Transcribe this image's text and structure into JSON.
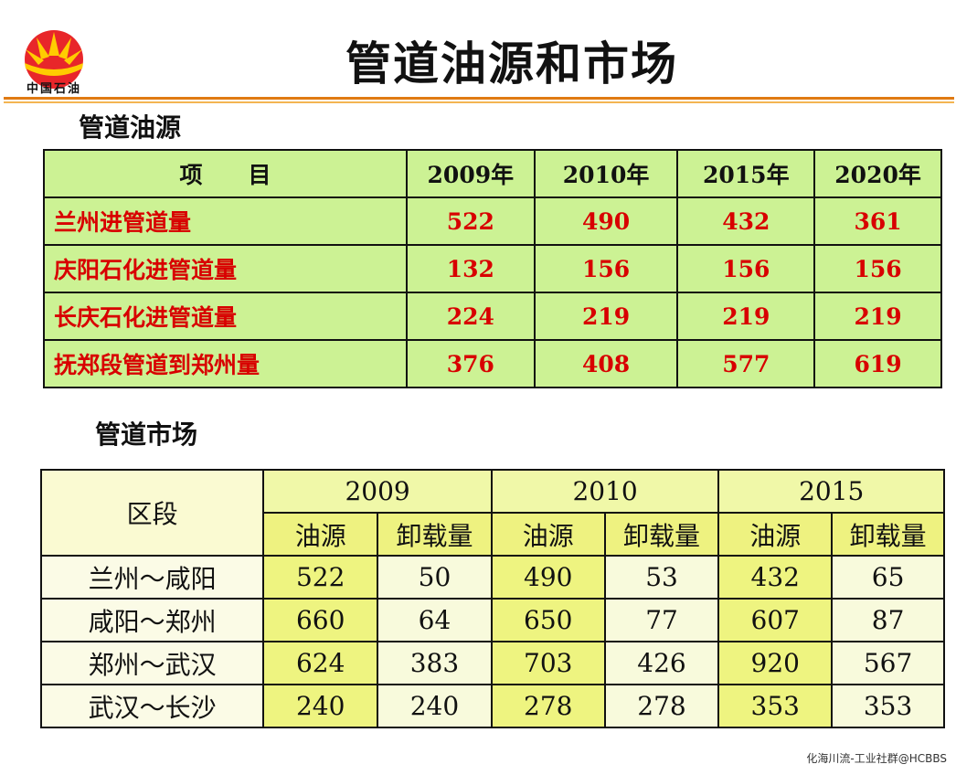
{
  "logo": {
    "text": "中国石油"
  },
  "title": "管道油源和市场",
  "section1": {
    "heading": "管道油源",
    "header": [
      "项　　目",
      "2009年",
      "2010年",
      "2015年",
      "2020年"
    ],
    "rows": [
      {
        "label": "兰州进管道量",
        "values": [
          "522",
          "490",
          "432",
          "361"
        ]
      },
      {
        "label": "庆阳石化进管道量",
        "values": [
          "132",
          "156",
          "156",
          "156"
        ]
      },
      {
        "label": "长庆石化进管道量",
        "values": [
          "224",
          "219",
          "219",
          "219"
        ]
      },
      {
        "label": "抚郑段管道到郑州量",
        "values": [
          "376",
          "408",
          "577",
          "619"
        ]
      }
    ]
  },
  "section2": {
    "heading": "管道市场",
    "segment_header": "区段",
    "years": [
      "2009",
      "2010",
      "2015"
    ],
    "subheaders": [
      "油源",
      "卸载量",
      "油源",
      "卸载量",
      "油源",
      "卸载量"
    ],
    "rows": [
      {
        "segment": "兰州～咸阳",
        "values": [
          "522",
          "50",
          "490",
          "53",
          "432",
          "65"
        ]
      },
      {
        "segment": "咸阳～郑州",
        "values": [
          "660",
          "64",
          "650",
          "77",
          "607",
          "87"
        ]
      },
      {
        "segment": "郑州～武汉",
        "values": [
          "624",
          "383",
          "703",
          "426",
          "920",
          "567"
        ]
      },
      {
        "segment": "武汉～长沙",
        "values": [
          "240",
          "240",
          "278",
          "278",
          "353",
          "353"
        ]
      }
    ]
  },
  "footer": "化海川流-工业社群@HCBBS"
}
